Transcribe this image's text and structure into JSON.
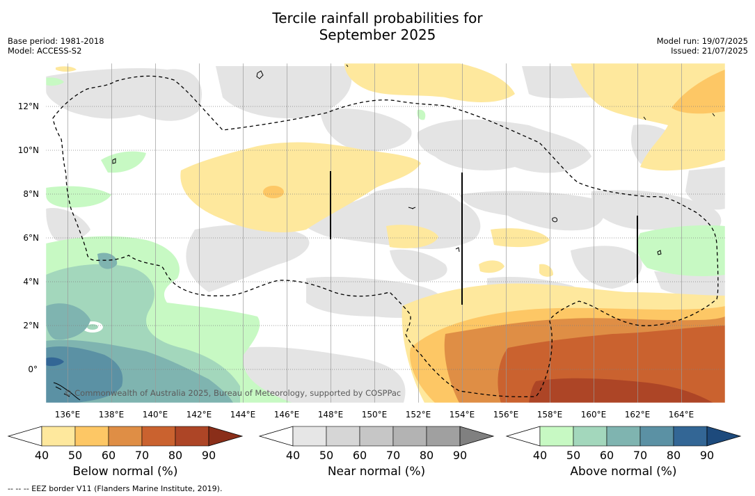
{
  "title_line1": "Tercile rainfall probabilities for",
  "title_line2": "September 2025",
  "meta": {
    "base_period": "Base period: 1981-2018",
    "model": "Model: ACCESS-S2",
    "model_run": "Model run: 19/07/2025",
    "issued": "Issued: 21/07/2025"
  },
  "map": {
    "lon_range": [
      134.9,
      165.9
    ],
    "lat_range": [
      -1.5,
      14.0
    ],
    "lon_ticks": [
      "136°E",
      "138°E",
      "140°E",
      "142°E",
      "144°E",
      "146°E",
      "148°E",
      "150°E",
      "152°E",
      "154°E",
      "156°E",
      "158°E",
      "160°E",
      "162°E",
      "164°E"
    ],
    "lat_ticks": [
      "12°N",
      "10°N",
      "8°N",
      "6°N",
      "4°N",
      "2°N",
      "0°"
    ],
    "copyright": "© Commonwealth of Australia 2025, Bureau of Meteorology, supported by COSPPac"
  },
  "colorbars": [
    {
      "label": "Below normal (%)",
      "ticks": [
        "40",
        "50",
        "60",
        "70",
        "80",
        "90"
      ],
      "colors": [
        "#ffffff",
        "#fee89d",
        "#fdc765",
        "#df8e45",
        "#ca622f",
        "#ad4526",
        "#8a2e19"
      ]
    },
    {
      "label": "Near normal (%)",
      "ticks": [
        "40",
        "50",
        "60",
        "70",
        "80",
        "90"
      ],
      "colors": [
        "#ffffff",
        "#e6e6e6",
        "#d6d6d6",
        "#c6c6c6",
        "#b3b3b3",
        "#a0a0a0",
        "#808080"
      ]
    },
    {
      "label": "Above normal (%)",
      "ticks": [
        "40",
        "50",
        "60",
        "70",
        "80",
        "90"
      ],
      "colors": [
        "#ffffff",
        "#c7f9c3",
        "#a3d7bc",
        "#7fb4b0",
        "#5b91a4",
        "#336695",
        "#1d4a7c"
      ]
    }
  ],
  "footnote": "-- -- -- EEZ border V11 (Flanders Marine Institute, 2019)."
}
